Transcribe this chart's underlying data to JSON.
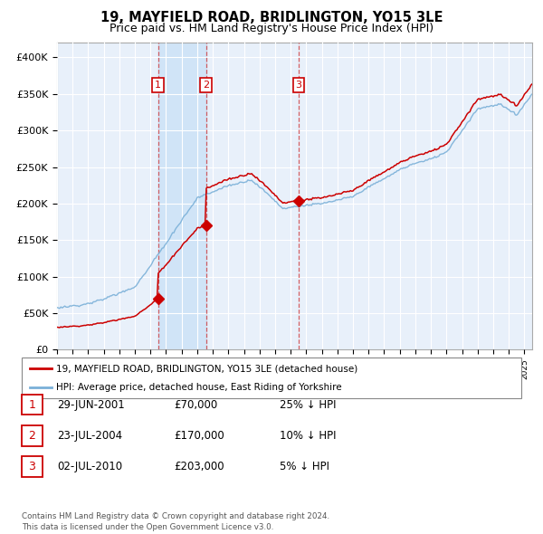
{
  "title": "19, MAYFIELD ROAD, BRIDLINGTON, YO15 3LE",
  "subtitle": "Price paid vs. HM Land Registry's House Price Index (HPI)",
  "background_color": "#ffffff",
  "plot_background": "#e8f0fa",
  "grid_color": "#ffffff",
  "sale_color": "#cc0000",
  "hpi_color": "#7ab0d8",
  "shade_color": "#d0e4f7",
  "ylim": [
    0,
    420000
  ],
  "yticks": [
    0,
    50000,
    100000,
    150000,
    200000,
    250000,
    300000,
    350000,
    400000
  ],
  "ytick_labels": [
    "£0",
    "£50K",
    "£100K",
    "£150K",
    "£200K",
    "£250K",
    "£300K",
    "£350K",
    "£400K"
  ],
  "sales": [
    {
      "date_num": 2001.49,
      "price": 70000,
      "label": "1"
    },
    {
      "date_num": 2004.56,
      "price": 170000,
      "label": "2"
    },
    {
      "date_num": 2010.5,
      "price": 203000,
      "label": "3"
    }
  ],
  "legend_sale_label": "19, MAYFIELD ROAD, BRIDLINGTON, YO15 3LE (detached house)",
  "legend_hpi_label": "HPI: Average price, detached house, East Riding of Yorkshire",
  "table_entries": [
    {
      "num": "1",
      "date": "29-JUN-2001",
      "price": "£70,000",
      "note": "25% ↓ HPI"
    },
    {
      "num": "2",
      "date": "23-JUL-2004",
      "price": "£170,000",
      "note": "10% ↓ HPI"
    },
    {
      "num": "3",
      "date": "02-JUL-2010",
      "price": "£203,000",
      "note": "5% ↓ HPI"
    }
  ],
  "footer": "Contains HM Land Registry data © Crown copyright and database right 2024.\nThis data is licensed under the Open Government Licence v3.0.",
  "xmin": 1995,
  "xmax": 2025.5
}
